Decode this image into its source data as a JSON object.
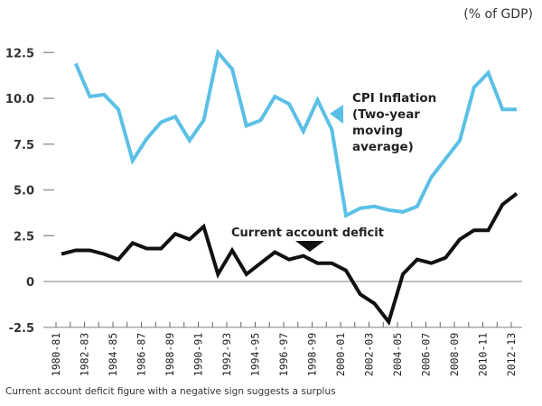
{
  "chart_data": {
    "type": "line",
    "title": "",
    "unit_label": "(% of GDP)",
    "xlabel": "",
    "ylabel": "",
    "ylim": [
      -2.5,
      12.5
    ],
    "yticks": [
      "12.5",
      "10.0",
      "7.5",
      "5.0",
      "2.5",
      "0",
      "-2.5"
    ],
    "ytick_values": [
      12.5,
      10.0,
      7.5,
      5.0,
      2.5,
      0,
      -2.5
    ],
    "grid": false,
    "x": [
      "1980-81",
      "1981-82",
      "1982-83",
      "1983-84",
      "1984-85",
      "1985-86",
      "1986-87",
      "1987-88",
      "1988-89",
      "1989-90",
      "1990-91",
      "1991-92",
      "1992-93",
      "1993-94",
      "1994-95",
      "1995-96",
      "1996-97",
      "1997-98",
      "1998-99",
      "1999-2000",
      "2000-01",
      "2001-02",
      "2002-03",
      "2003-04",
      "2004-05",
      "2005-06",
      "2006-07",
      "2007-08",
      "2008-09",
      "2009-10",
      "2010-11",
      "2011-12",
      "2012-13"
    ],
    "xtick_labels": [
      "1980-81",
      "1982-83",
      "1984-85",
      "1986-87",
      "1988-89",
      "1990-91",
      "1992-93",
      "1994-95",
      "1996-97",
      "1998-99",
      "2000-01",
      "2002-03",
      "2004-05",
      "2006-07",
      "2008-09",
      "2010-11",
      "2012-13"
    ],
    "series": [
      {
        "name": "CPI Inflation (Two-year moving average)",
        "color": "#5bc0e6",
        "start_index": 1,
        "values": [
          11.9,
          10.1,
          10.2,
          9.4,
          6.6,
          7.8,
          8.7,
          9.0,
          7.7,
          8.8,
          12.5,
          11.6,
          8.5,
          8.8,
          10.1,
          9.7,
          8.2,
          9.9,
          8.3,
          3.6,
          4.0,
          4.1,
          3.9,
          3.8,
          4.1,
          5.7,
          6.7,
          7.7,
          10.6,
          11.4,
          9.4,
          9.4
        ]
      },
      {
        "name": "Current account deficit",
        "color": "#111111",
        "start_index": 0,
        "values": [
          1.5,
          1.7,
          1.7,
          1.5,
          1.2,
          2.1,
          1.8,
          1.8,
          2.6,
          2.3,
          3.0,
          0.4,
          1.7,
          0.4,
          1.0,
          1.6,
          1.2,
          1.4,
          1.0,
          1.0,
          0.6,
          -0.7,
          -1.2,
          -2.2,
          0.4,
          1.2,
          1.0,
          1.3,
          2.3,
          2.8,
          2.8,
          4.2,
          4.8
        ]
      }
    ],
    "annotations": {
      "cpi_label_lines": [
        "CPI Inflation",
        "(Two-year",
        "moving",
        "average)"
      ],
      "cad_label": "Current account deficit"
    },
    "legend": "inline annotations",
    "footnote": "Current account deficit figure with a negative sign suggests a surplus"
  }
}
